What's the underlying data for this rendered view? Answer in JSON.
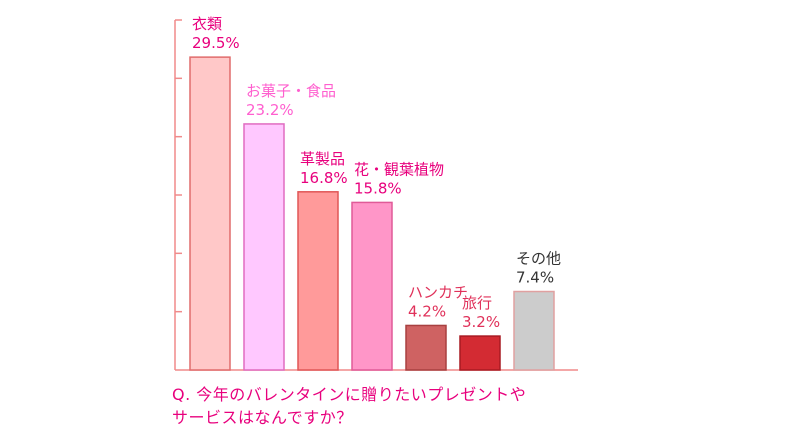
{
  "chart_data": {
    "type": "bar",
    "categories": [
      "衣類",
      "お菓子・食品",
      "革製品",
      "花・観葉植物",
      "ハンカチ",
      "旅行",
      "その他"
    ],
    "values": [
      29.5,
      23.2,
      16.8,
      15.8,
      4.2,
      3.2,
      7.4
    ],
    "value_labels": [
      "29.5%",
      "23.2%",
      "16.8%",
      "15.8%",
      "4.2%",
      "3.2%",
      "7.4%"
    ],
    "bar_colors": [
      "#ffc8c8",
      "#ffc8ff",
      "#ff9a9a",
      "#ff96c8",
      "#cf6262",
      "#d32b33",
      "#cccccc"
    ],
    "bar_border_colors": [
      "#e06c6c",
      "#e06cc0",
      "#e05656",
      "#e05a98",
      "#a84040",
      "#a81a22",
      "#e0a0a0"
    ],
    "label_colors": [
      "#e8007d",
      "#ff5fcf",
      "#e8007d",
      "#e8007d",
      "#e0315a",
      "#e0315a",
      "#333333"
    ],
    "ylim": [
      0,
      33
    ],
    "grid": false,
    "title": "",
    "xlabel": "",
    "ylabel": ""
  },
  "question": {
    "line1": "Q. 今年のバレンタインに贈りたいプレゼントや",
    "line2": "サービスはなんですか？"
  },
  "colors": {
    "axis": "#f08a8a",
    "question_text": "#e8007d"
  }
}
